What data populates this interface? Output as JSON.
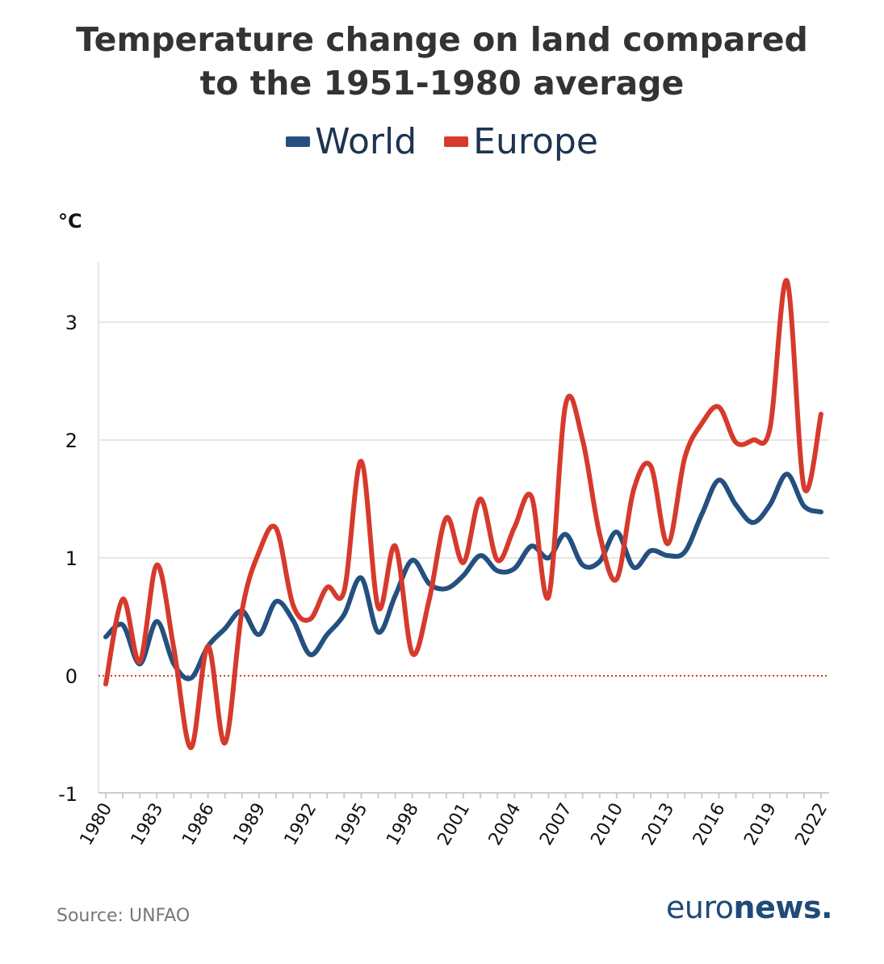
{
  "title": {
    "line1": "Temperature change on land compared",
    "line2": "to the 1951-1980 average"
  },
  "unit_label": "°C",
  "source": "Source: UNFAO",
  "logo": {
    "part1": "euro",
    "part2": "news."
  },
  "colors": {
    "world": "#24507f",
    "europe": "#d63a2c",
    "grid": "#e6e6e6",
    "zero_line": "#d63a2c"
  },
  "chart_data": {
    "type": "line",
    "x": [
      1980,
      1981,
      1982,
      1983,
      1984,
      1985,
      1986,
      1987,
      1988,
      1989,
      1990,
      1991,
      1992,
      1993,
      1994,
      1995,
      1996,
      1997,
      1998,
      1999,
      2000,
      2001,
      2002,
      2003,
      2004,
      2005,
      2006,
      2007,
      2008,
      2009,
      2010,
      2011,
      2012,
      2013,
      2014,
      2015,
      2016,
      2017,
      2018,
      2019,
      2020,
      2021,
      2022
    ],
    "xticks": [
      1980,
      1983,
      1986,
      1989,
      1992,
      1995,
      1998,
      2001,
      2004,
      2007,
      2010,
      2013,
      2016,
      2019,
      2022
    ],
    "series": [
      {
        "name": "World",
        "values": [
          0.33,
          0.43,
          0.1,
          0.46,
          0.1,
          -0.02,
          0.25,
          0.4,
          0.55,
          0.35,
          0.63,
          0.47,
          0.18,
          0.35,
          0.52,
          0.83,
          0.37,
          0.68,
          0.98,
          0.78,
          0.74,
          0.85,
          1.02,
          0.89,
          0.91,
          1.1,
          1.0,
          1.2,
          0.94,
          0.97,
          1.22,
          0.92,
          1.06,
          1.02,
          1.05,
          1.37,
          1.66,
          1.45,
          1.3,
          1.45,
          1.71,
          1.44,
          1.39
        ]
      },
      {
        "name": "Europe",
        "values": [
          -0.07,
          0.65,
          0.12,
          0.94,
          0.23,
          -0.61,
          0.25,
          -0.57,
          0.55,
          1.05,
          1.25,
          0.6,
          0.48,
          0.75,
          0.72,
          1.82,
          0.58,
          1.1,
          0.19,
          0.65,
          1.34,
          0.96,
          1.5,
          0.98,
          1.26,
          1.52,
          0.67,
          2.3,
          2.0,
          1.2,
          0.82,
          1.58,
          1.78,
          1.12,
          1.85,
          2.14,
          2.28,
          1.98,
          2.0,
          2.1,
          3.35,
          1.6,
          2.22
        ]
      }
    ],
    "ylim": [
      -1,
      3.5
    ],
    "yticks": [
      -1,
      0,
      1,
      2,
      3
    ],
    "ylabel": "°C",
    "grid": true,
    "legend_position": "top-center"
  }
}
